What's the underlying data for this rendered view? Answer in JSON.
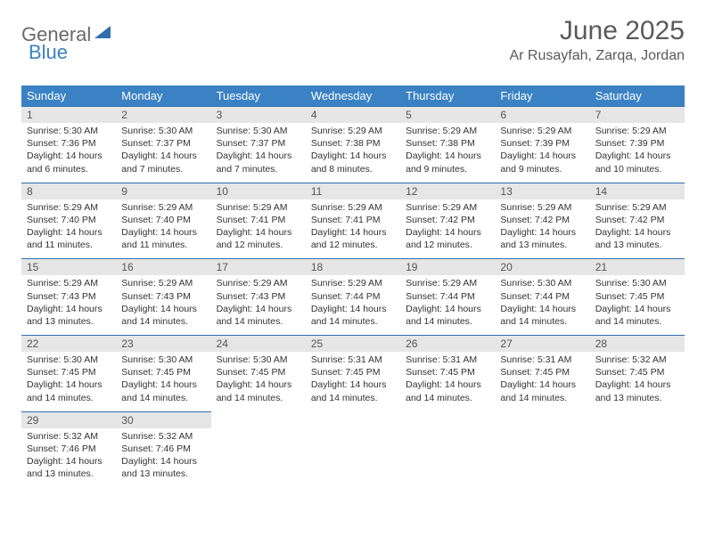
{
  "brand": {
    "part1": "General",
    "part2": "Blue"
  },
  "title": "June 2025",
  "location": "Ar Rusayfah, Zarqa, Jordan",
  "colors": {
    "header_bg": "#3a82c4",
    "header_text": "#ffffff",
    "daynum_bg": "#e6e6e6",
    "rule": "#2f6fab",
    "text": "#333333",
    "muted": "#5a5a5a"
  },
  "weekdays": [
    "Sunday",
    "Monday",
    "Tuesday",
    "Wednesday",
    "Thursday",
    "Friday",
    "Saturday"
  ],
  "weeks": [
    [
      {
        "n": "1",
        "sr": "5:30 AM",
        "ss": "7:36 PM",
        "dl": "14 hours and 6 minutes."
      },
      {
        "n": "2",
        "sr": "5:30 AM",
        "ss": "7:37 PM",
        "dl": "14 hours and 7 minutes."
      },
      {
        "n": "3",
        "sr": "5:30 AM",
        "ss": "7:37 PM",
        "dl": "14 hours and 7 minutes."
      },
      {
        "n": "4",
        "sr": "5:29 AM",
        "ss": "7:38 PM",
        "dl": "14 hours and 8 minutes."
      },
      {
        "n": "5",
        "sr": "5:29 AM",
        "ss": "7:38 PM",
        "dl": "14 hours and 9 minutes."
      },
      {
        "n": "6",
        "sr": "5:29 AM",
        "ss": "7:39 PM",
        "dl": "14 hours and 9 minutes."
      },
      {
        "n": "7",
        "sr": "5:29 AM",
        "ss": "7:39 PM",
        "dl": "14 hours and 10 minutes."
      }
    ],
    [
      {
        "n": "8",
        "sr": "5:29 AM",
        "ss": "7:40 PM",
        "dl": "14 hours and 11 minutes."
      },
      {
        "n": "9",
        "sr": "5:29 AM",
        "ss": "7:40 PM",
        "dl": "14 hours and 11 minutes."
      },
      {
        "n": "10",
        "sr": "5:29 AM",
        "ss": "7:41 PM",
        "dl": "14 hours and 12 minutes."
      },
      {
        "n": "11",
        "sr": "5:29 AM",
        "ss": "7:41 PM",
        "dl": "14 hours and 12 minutes."
      },
      {
        "n": "12",
        "sr": "5:29 AM",
        "ss": "7:42 PM",
        "dl": "14 hours and 12 minutes."
      },
      {
        "n": "13",
        "sr": "5:29 AM",
        "ss": "7:42 PM",
        "dl": "14 hours and 13 minutes."
      },
      {
        "n": "14",
        "sr": "5:29 AM",
        "ss": "7:42 PM",
        "dl": "14 hours and 13 minutes."
      }
    ],
    [
      {
        "n": "15",
        "sr": "5:29 AM",
        "ss": "7:43 PM",
        "dl": "14 hours and 13 minutes."
      },
      {
        "n": "16",
        "sr": "5:29 AM",
        "ss": "7:43 PM",
        "dl": "14 hours and 14 minutes."
      },
      {
        "n": "17",
        "sr": "5:29 AM",
        "ss": "7:43 PM",
        "dl": "14 hours and 14 minutes."
      },
      {
        "n": "18",
        "sr": "5:29 AM",
        "ss": "7:44 PM",
        "dl": "14 hours and 14 minutes."
      },
      {
        "n": "19",
        "sr": "5:29 AM",
        "ss": "7:44 PM",
        "dl": "14 hours and 14 minutes."
      },
      {
        "n": "20",
        "sr": "5:30 AM",
        "ss": "7:44 PM",
        "dl": "14 hours and 14 minutes."
      },
      {
        "n": "21",
        "sr": "5:30 AM",
        "ss": "7:45 PM",
        "dl": "14 hours and 14 minutes."
      }
    ],
    [
      {
        "n": "22",
        "sr": "5:30 AM",
        "ss": "7:45 PM",
        "dl": "14 hours and 14 minutes."
      },
      {
        "n": "23",
        "sr": "5:30 AM",
        "ss": "7:45 PM",
        "dl": "14 hours and 14 minutes."
      },
      {
        "n": "24",
        "sr": "5:30 AM",
        "ss": "7:45 PM",
        "dl": "14 hours and 14 minutes."
      },
      {
        "n": "25",
        "sr": "5:31 AM",
        "ss": "7:45 PM",
        "dl": "14 hours and 14 minutes."
      },
      {
        "n": "26",
        "sr": "5:31 AM",
        "ss": "7:45 PM",
        "dl": "14 hours and 14 minutes."
      },
      {
        "n": "27",
        "sr": "5:31 AM",
        "ss": "7:45 PM",
        "dl": "14 hours and 14 minutes."
      },
      {
        "n": "28",
        "sr": "5:32 AM",
        "ss": "7:45 PM",
        "dl": "14 hours and 13 minutes."
      }
    ],
    [
      {
        "n": "29",
        "sr": "5:32 AM",
        "ss": "7:46 PM",
        "dl": "14 hours and 13 minutes."
      },
      {
        "n": "30",
        "sr": "5:32 AM",
        "ss": "7:46 PM",
        "dl": "14 hours and 13 minutes."
      },
      null,
      null,
      null,
      null,
      null
    ]
  ],
  "labels": {
    "sunrise": "Sunrise: ",
    "sunset": "Sunset: ",
    "daylight": "Daylight: "
  }
}
